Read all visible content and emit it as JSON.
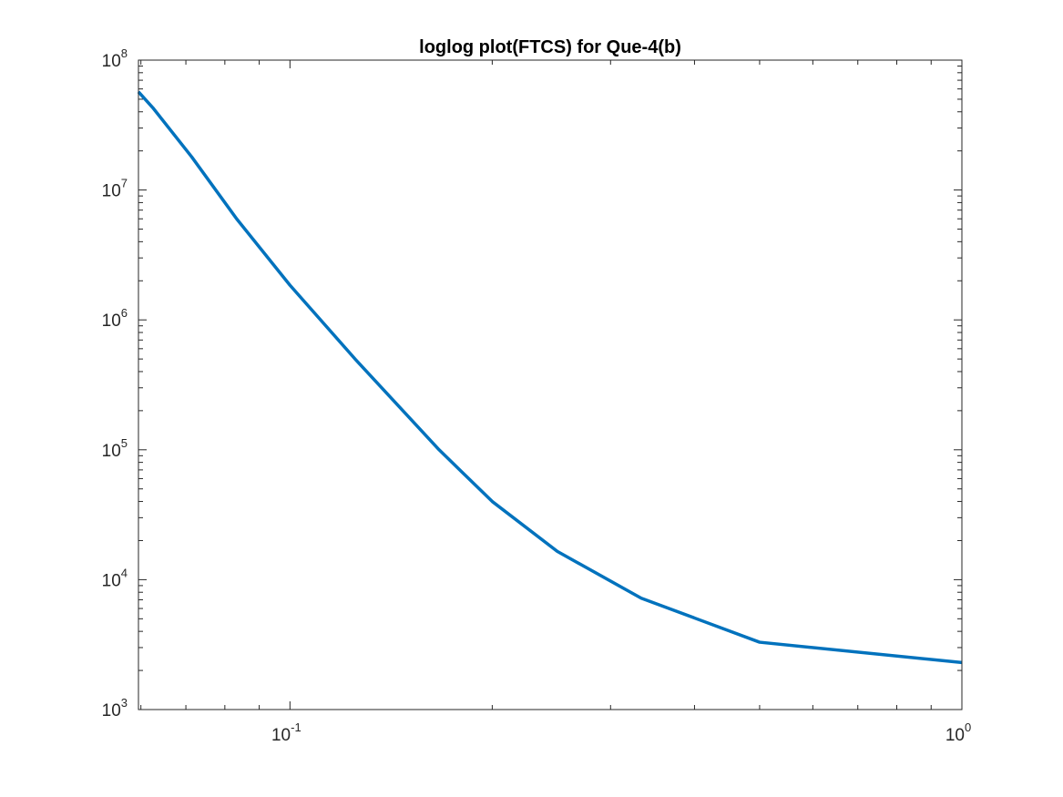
{
  "chart_data": {
    "type": "line",
    "title": "loglog plot(FTCS) for Que-4(b)",
    "xlabel": "",
    "ylabel": "",
    "xscale": "log",
    "yscale": "log",
    "xlim": [
      0.0595,
      1
    ],
    "ylim": [
      1000,
      100000000
    ],
    "grid": false,
    "box": true,
    "x_ticks": [
      {
        "value": 0.1,
        "base": "10",
        "exp": "-1"
      },
      {
        "value": 1,
        "base": "10",
        "exp": "0"
      }
    ],
    "y_ticks": [
      {
        "value": 1000,
        "base": "10",
        "exp": "3"
      },
      {
        "value": 10000,
        "base": "10",
        "exp": "4"
      },
      {
        "value": 100000,
        "base": "10",
        "exp": "5"
      },
      {
        "value": 1000000,
        "base": "10",
        "exp": "6"
      },
      {
        "value": 10000000,
        "base": "10",
        "exp": "7"
      },
      {
        "value": 100000000,
        "base": "10",
        "exp": "8"
      }
    ],
    "series": [
      {
        "color": "#0072BD",
        "x": [
          0.0595,
          0.0625,
          0.0714,
          0.0833,
          0.1,
          0.125,
          0.1667,
          0.2,
          0.25,
          0.3333,
          0.5,
          1
        ],
        "y": [
          57000000,
          43000000,
          18000000,
          6000000,
          1850000,
          500000,
          100000,
          40000,
          16500,
          7200,
          3300,
          2300
        ]
      }
    ]
  }
}
